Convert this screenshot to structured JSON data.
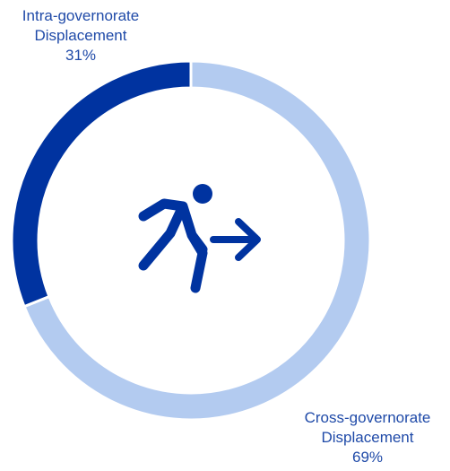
{
  "chart_data": {
    "type": "pie",
    "title": "",
    "slices": [
      {
        "name": "Intra-governorate Displacement",
        "label_lines": [
          "Intra-governorate",
          "Displacement"
        ],
        "value": 31,
        "value_label": "31%",
        "color": "#0033a0"
      },
      {
        "name": "Cross-governorate Displacement",
        "label_lines": [
          "Cross-governorate",
          "Displacement"
        ],
        "value": 69,
        "value_label": "69%",
        "color": "#b3cbf0"
      }
    ],
    "style": "donut",
    "legend": "none",
    "start_angle_deg": 0,
    "center_icon": "person-leaving-icon"
  },
  "colors": {
    "icon": "#0033a0",
    "label_text": "#1f4aa8",
    "separator": "#ffffff"
  }
}
